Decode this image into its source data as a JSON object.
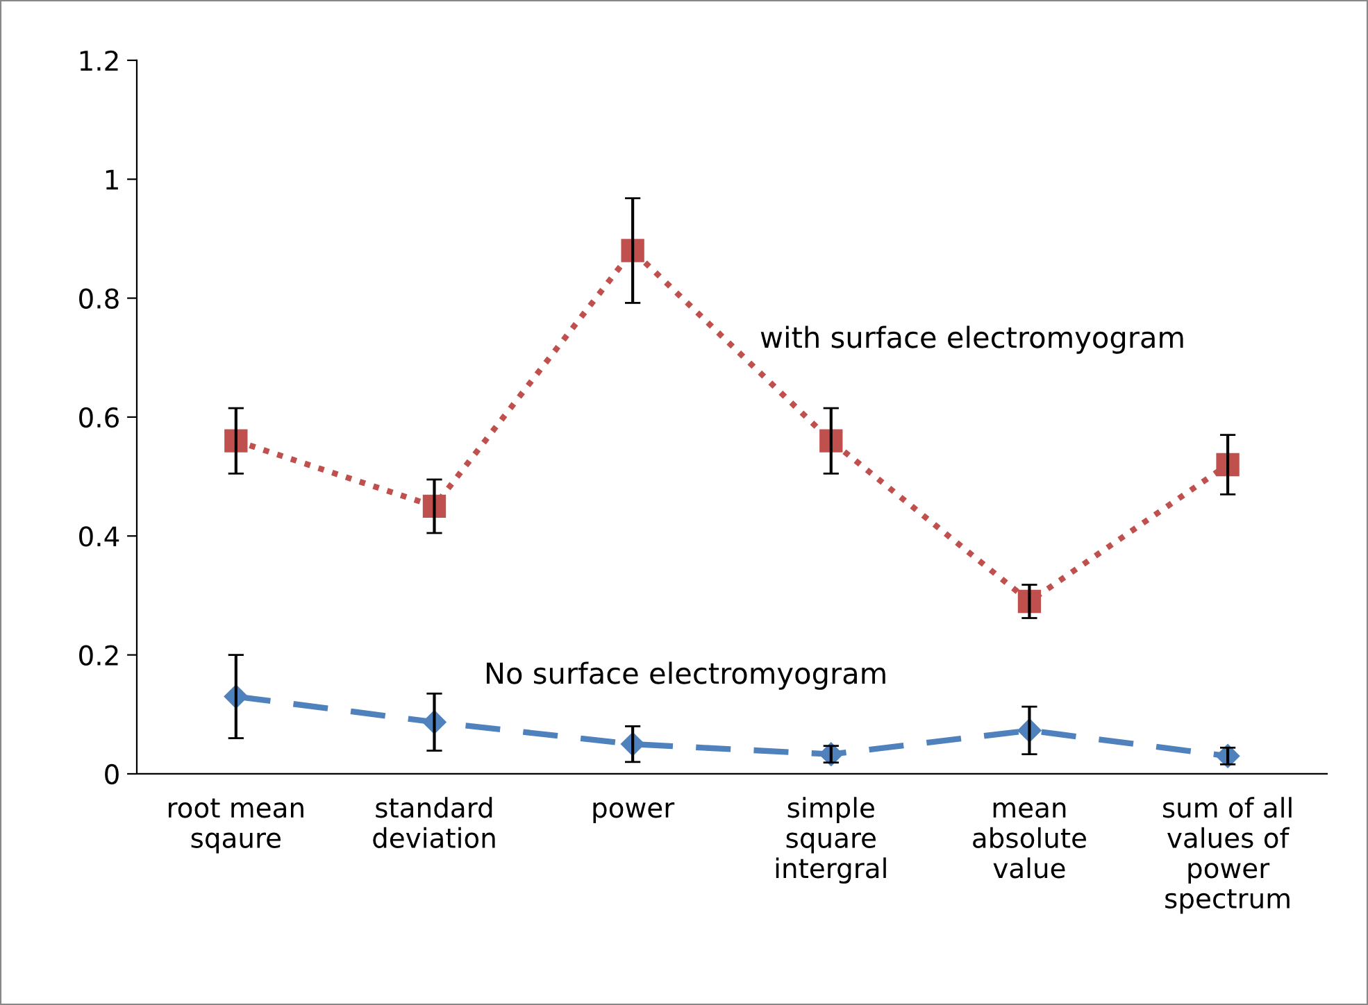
{
  "chart_data": {
    "type": "line",
    "categories": [
      "root mean\nsqaure",
      "standard\ndeviation",
      "power",
      "simple\nsquare\nintergral",
      "mean\nabsolute\nvalue",
      "sum of all\nvalues of\npower\nspectrum"
    ],
    "series": [
      {
        "name": "with surface electromyogram",
        "color": "#c0504d",
        "marker": "square",
        "line_style": "dotted",
        "values": [
          0.56,
          0.45,
          0.88,
          0.56,
          0.29,
          0.52
        ],
        "errors": [
          0.055,
          0.045,
          0.088,
          0.055,
          0.028,
          0.05
        ]
      },
      {
        "name": "No surface electromyogram",
        "color": "#4f81bd",
        "marker": "diamond",
        "line_style": "dashed",
        "values": [
          0.13,
          0.087,
          0.05,
          0.033,
          0.073,
          0.03
        ],
        "errors": [
          0.07,
          0.048,
          0.03,
          0.014,
          0.04,
          0.014
        ]
      }
    ],
    "ylim": [
      0,
      1.2
    ],
    "yticks": [
      0,
      {
        "value": 0.2,
        "label": "0.2"
      },
      {
        "value": 0.4,
        "label": "0.4"
      },
      {
        "value": 0.6,
        "label": "0.6"
      },
      {
        "value": 0.8,
        "label": "0.8"
      },
      1,
      {
        "value": 1.2,
        "label": "1.2"
      }
    ],
    "grid": false,
    "legend": false
  }
}
